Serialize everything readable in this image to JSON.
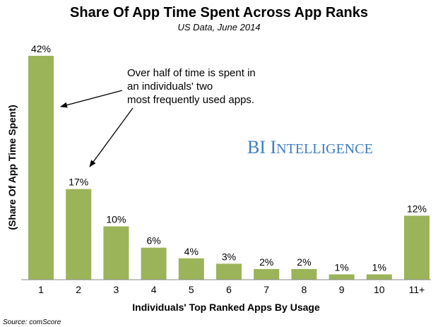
{
  "chart_data": {
    "type": "bar",
    "title": "Share Of App Time Spent Across App Ranks",
    "subtitle": "US Data, June 2014",
    "xlabel": "Individuals' Top Ranked Apps By Usage",
    "ylabel": "(Share Of App Time Spent)",
    "categories": [
      "1",
      "2",
      "3",
      "4",
      "5",
      "6",
      "7",
      "8",
      "9",
      "10",
      "11+"
    ],
    "values": [
      42,
      17,
      10,
      6,
      4,
      3,
      2,
      2,
      1,
      1,
      12
    ],
    "value_labels": [
      "42%",
      "17%",
      "10%",
      "6%",
      "4%",
      "3%",
      "2%",
      "2%",
      "1%",
      "1%",
      "12%"
    ],
    "ylim": [
      0,
      42
    ],
    "grid": false,
    "bar_color": "#9bb45a",
    "annotation": {
      "lines": [
        "Over half of time is spent in",
        "an individuals' two",
        "most frequently used apps."
      ],
      "targets": [
        "1",
        "2"
      ]
    },
    "source": "Source: comScore"
  },
  "brand": {
    "first": "BI",
    "cap": "I",
    "rest": "NTELLIGENCE",
    "color": "#3d7ec2"
  }
}
